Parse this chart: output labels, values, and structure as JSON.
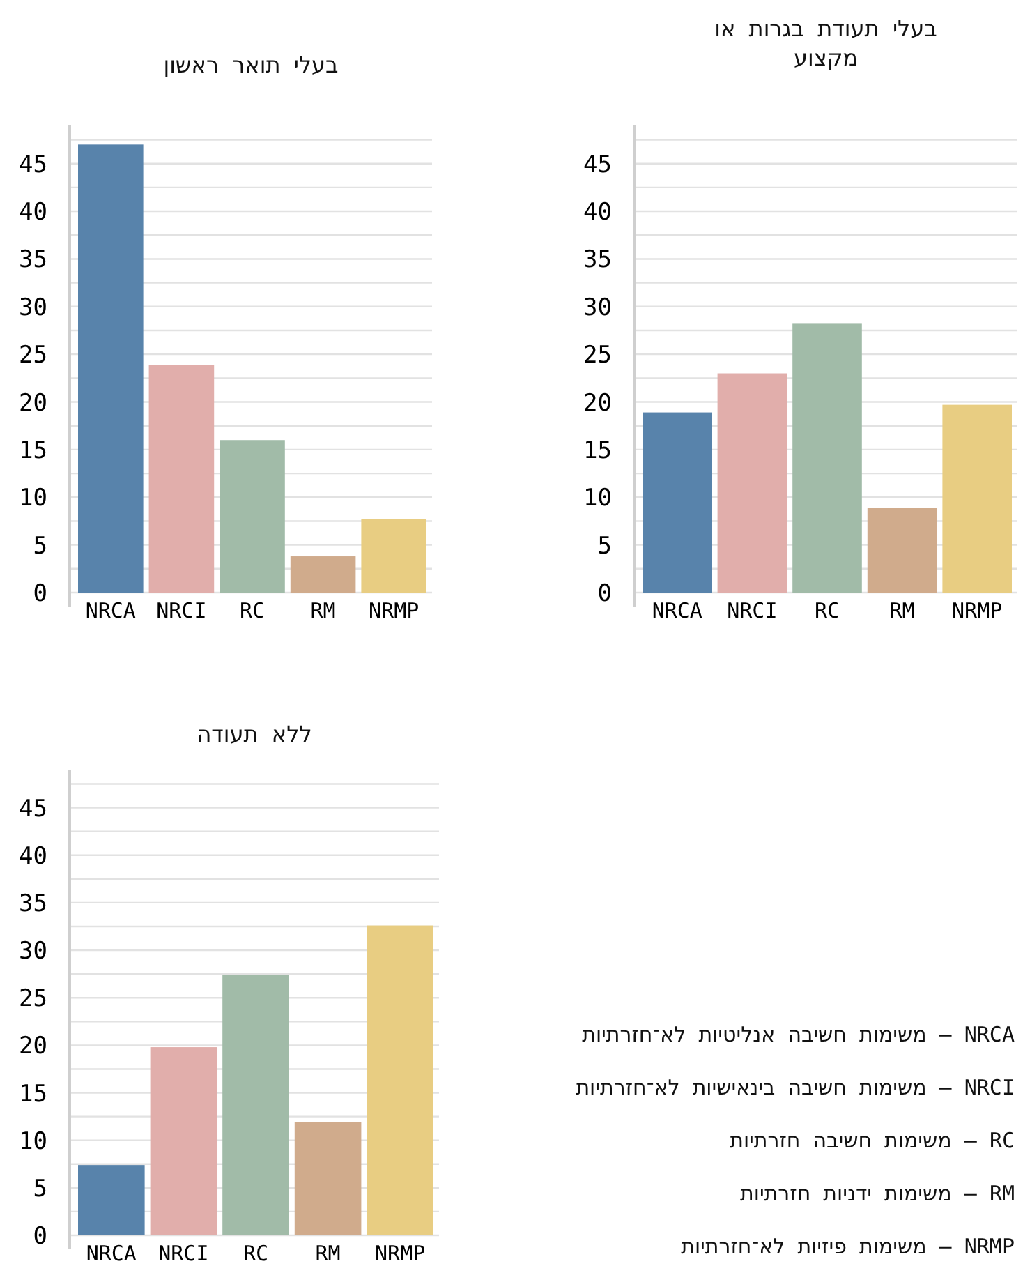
{
  "chart_data": [
    {
      "type": "bar",
      "title": "בעלי תואר ראשון",
      "categories": [
        "NRCA",
        "NRCI",
        "RC",
        "RM",
        "NRMP"
      ],
      "values": [
        47,
        23.9,
        16,
        3.8,
        7.7
      ],
      "colors": [
        "#5883ab",
        "#e1aeab",
        "#a1bba8",
        "#d0ab8c",
        "#e8cd82"
      ],
      "ylim": [
        0,
        49
      ],
      "yticks": [
        0,
        {
          "value": 2.5,
          "label": null
        },
        5,
        {
          "value": 7.5,
          "label": null
        },
        10,
        {
          "value": 12.5,
          "label": null
        },
        15,
        {
          "value": 17.5,
          "label": null
        },
        20,
        {
          "value": 22.5,
          "label": null
        },
        25,
        {
          "value": 27.5,
          "label": null
        },
        30,
        {
          "value": 32.5,
          "label": null
        },
        35,
        {
          "value": 37.5,
          "label": null
        },
        40,
        {
          "value": 42.5,
          "label": null
        },
        45,
        {
          "value": 47.5,
          "label": null
        }
      ],
      "grid": "y"
    },
    {
      "type": "bar",
      "title": "בעלי תעודת בגרות או מקצוע",
      "categories": [
        "NRCA",
        "NRCI",
        "RC",
        "RM",
        "NRMP"
      ],
      "values": [
        18.9,
        23,
        28.2,
        8.9,
        19.7
      ],
      "colors": [
        "#5883ab",
        "#e1aeab",
        "#a1bba8",
        "#d0ab8c",
        "#e8cd82"
      ],
      "ylim": [
        0,
        49
      ],
      "yticks": [
        0,
        {
          "value": 2.5,
          "label": null
        },
        5,
        {
          "value": 7.5,
          "label": null
        },
        10,
        {
          "value": 12.5,
          "label": null
        },
        15,
        {
          "value": 17.5,
          "label": null
        },
        20,
        {
          "value": 22.5,
          "label": null
        },
        25,
        {
          "value": 27.5,
          "label": null
        },
        30,
        {
          "value": 32.5,
          "label": null
        },
        35,
        {
          "value": 37.5,
          "label": null
        },
        40,
        {
          "value": 42.5,
          "label": null
        },
        45,
        {
          "value": 47.5,
          "label": null
        }
      ],
      "grid": "y"
    },
    {
      "type": "bar",
      "title": "ללא תעודה",
      "categories": [
        "NRCA",
        "NRCI",
        "RC",
        "RM",
        "NRMP"
      ],
      "values": [
        7.4,
        19.8,
        27.4,
        11.9,
        32.6
      ],
      "colors": [
        "#5883ab",
        "#e1aeab",
        "#a1bba8",
        "#d0ab8c",
        "#e8cd82"
      ],
      "ylim": [
        0,
        49
      ],
      "yticks": [
        0,
        {
          "value": 2.5,
          "label": null
        },
        5,
        {
          "value": 7.5,
          "label": null
        },
        10,
        {
          "value": 12.5,
          "label": null
        },
        15,
        {
          "value": 17.5,
          "label": null
        },
        20,
        {
          "value": 22.5,
          "label": null
        },
        25,
        {
          "value": 27.5,
          "label": null
        },
        30,
        {
          "value": 32.5,
          "label": null
        },
        35,
        {
          "value": 37.5,
          "label": null
        },
        40,
        {
          "value": 42.5,
          "label": null
        },
        45,
        {
          "value": 47.5,
          "label": null
        }
      ],
      "grid": "y"
    },
    {
      "type": "other",
      "annotations": [
        "NRCA – משימות חשיבה אנליטיות לא־חזרתיות",
        "NRCI – משימות חשיבה בינאישיות לא־חזרתיות",
        "RC – משימות חשיבה חזרתיות",
        "RM – משימות ידניות חזרתיות",
        "NRMP – משימות פיזיות לא־חזרתיות"
      ]
    }
  ]
}
